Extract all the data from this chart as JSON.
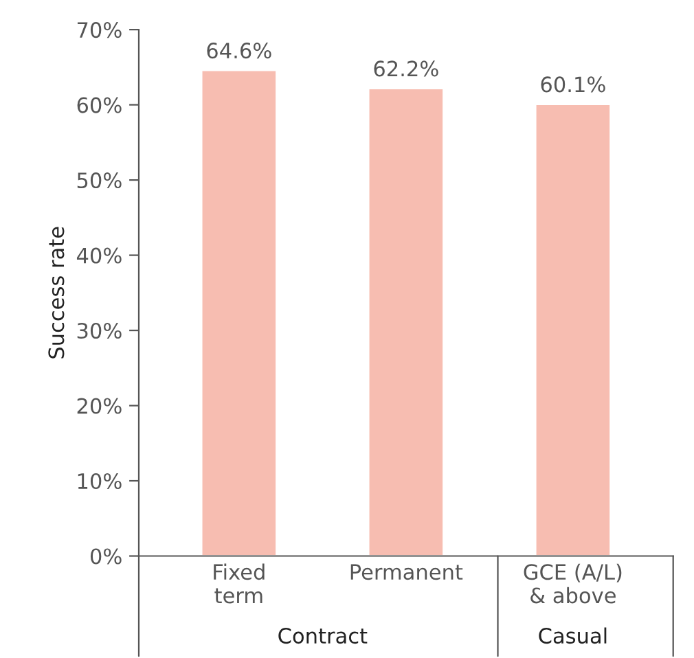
{
  "chart_data": {
    "type": "bar",
    "ylabel": "Success rate",
    "categories": [
      "Fixed\nterm",
      "Permanent",
      "GCE (A/L)\n& above"
    ],
    "values": [
      64.6,
      62.2,
      60.1
    ],
    "value_labels": [
      "64.6%",
      "62.2%",
      "60.1%"
    ],
    "color": "#f7bdb1",
    "ylim": [
      0,
      70
    ],
    "yticks": [
      {
        "value": 0,
        "label": "0%"
      },
      {
        "value": 10,
        "label": "10%"
      },
      {
        "value": 20,
        "label": "20%"
      },
      {
        "value": 30,
        "label": "30%"
      },
      {
        "value": 40,
        "label": "40%"
      },
      {
        "value": 50,
        "label": "50%"
      },
      {
        "value": 60,
        "label": "60%"
      },
      {
        "value": 70,
        "label": "70%"
      }
    ],
    "grid": false,
    "annotations": [
      "Contract",
      "Casual"
    ]
  }
}
